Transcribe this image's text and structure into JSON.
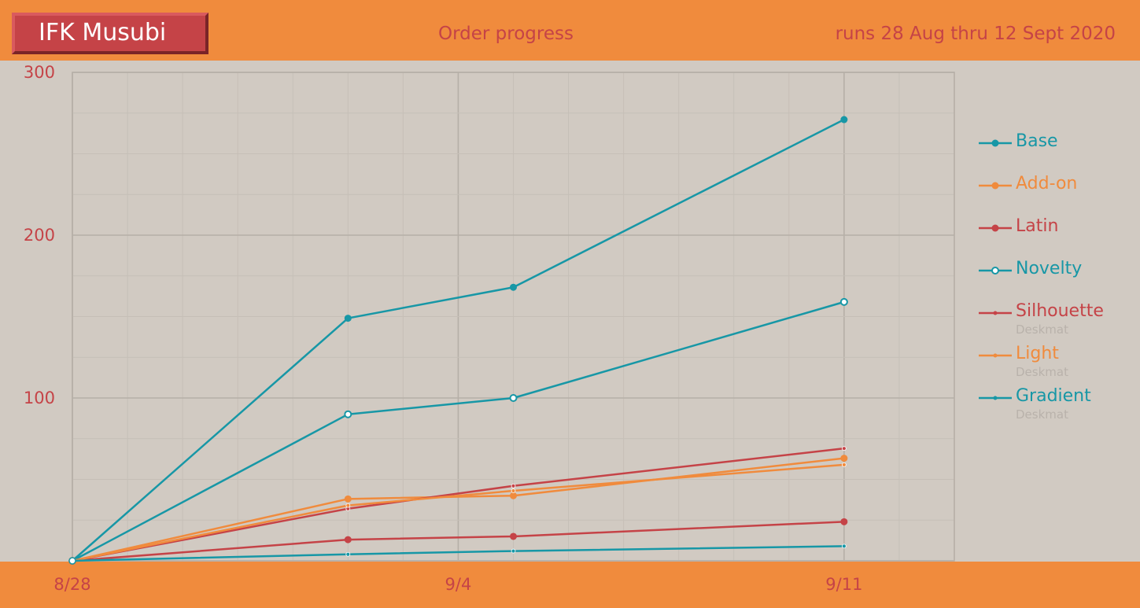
{
  "header": {
    "brand": "IFK Musubi",
    "title": "Order progress",
    "runs": "runs 28 Aug thru 12 Sept 2020"
  },
  "colors": {
    "background": "#d1cac2",
    "bar": "#f08b3d",
    "teal": "#1797a6",
    "orange": "#f08b3d",
    "red": "#c54347",
    "grid": "#bfb8b0"
  },
  "chart_data": {
    "type": "line",
    "title": "Order progress",
    "x_dates": [
      "2020-08-28",
      "2020-09-02",
      "2020-09-05",
      "2020-09-11"
    ],
    "x_tick_labels": [
      {
        "date": "2020-08-28",
        "label": "8/28"
      },
      {
        "date": "2020-09-04",
        "label": "9/4"
      },
      {
        "date": "2020-09-11",
        "label": "9/11"
      }
    ],
    "xlim": [
      "2020-08-28",
      "2020-09-13"
    ],
    "ylim": [
      0,
      300
    ],
    "y_ticks": [
      100,
      200,
      300
    ],
    "grid": true,
    "legend_position": "right",
    "series": [
      {
        "name": "Base",
        "sub": "",
        "color": "#1797a6",
        "marker": "filled",
        "values": [
          0,
          149,
          168,
          271
        ]
      },
      {
        "name": "Add-on",
        "sub": "",
        "color": "#f08b3d",
        "marker": "filled",
        "values": [
          0,
          38,
          40,
          63
        ]
      },
      {
        "name": "Latin",
        "sub": "",
        "color": "#c54347",
        "marker": "filled",
        "values": [
          0,
          13,
          15,
          24
        ]
      },
      {
        "name": "Novelty",
        "sub": "",
        "color": "#1797a6",
        "marker": "open",
        "values": [
          0,
          90,
          100,
          159
        ]
      },
      {
        "name": "Silhouette",
        "sub": "Deskmat",
        "color": "#c54347",
        "marker": "small",
        "values": [
          0,
          32,
          46,
          69
        ]
      },
      {
        "name": "Light",
        "sub": "Deskmat",
        "color": "#f08b3d",
        "marker": "small",
        "values": [
          0,
          34,
          43,
          59
        ]
      },
      {
        "name": "Gradient",
        "sub": "Deskmat",
        "color": "#1797a6",
        "marker": "small",
        "values": [
          0,
          4,
          6,
          9
        ]
      }
    ]
  }
}
